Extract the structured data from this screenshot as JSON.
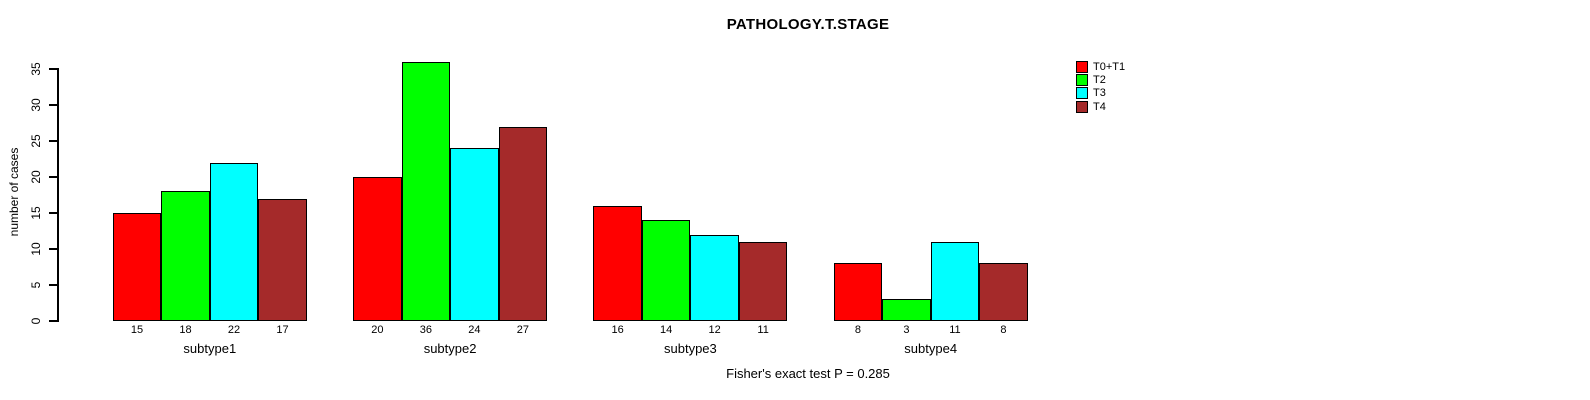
{
  "chart_data": {
    "type": "bar",
    "title": "PATHOLOGY.T.STAGE",
    "ylabel": "number of cases",
    "xlabel": "",
    "note": "Fisher's exact test P = 0.285",
    "categories": [
      "subtype1",
      "subtype2",
      "subtype3",
      "subtype4"
    ],
    "series": [
      {
        "name": "T0+T1",
        "color": "#FF0000",
        "values": [
          15,
          20,
          16,
          8
        ]
      },
      {
        "name": "T2",
        "color": "#00FF00",
        "values": [
          18,
          36,
          14,
          3
        ]
      },
      {
        "name": "T3",
        "color": "#00FFFF",
        "values": [
          22,
          24,
          12,
          11
        ]
      },
      {
        "name": "T4",
        "color": "#A52A2A",
        "values": [
          17,
          27,
          11,
          8
        ]
      }
    ],
    "yticks": [
      0,
      5,
      10,
      15,
      20,
      25,
      30,
      35
    ],
    "ylim": [
      0,
      36
    ],
    "bar_value_labels": [
      [
        15,
        18,
        22,
        17
      ],
      [
        20,
        36,
        24,
        27
      ],
      [
        16,
        14,
        12,
        11
      ],
      [
        8,
        3,
        11,
        8
      ]
    ],
    "legend": {
      "entries": [
        "T0+T1",
        "T2",
        "T3",
        "T4"
      ],
      "position": "top-right"
    },
    "grid": false,
    "axis_color": "#000000",
    "background_color": "#FFFFFF"
  }
}
